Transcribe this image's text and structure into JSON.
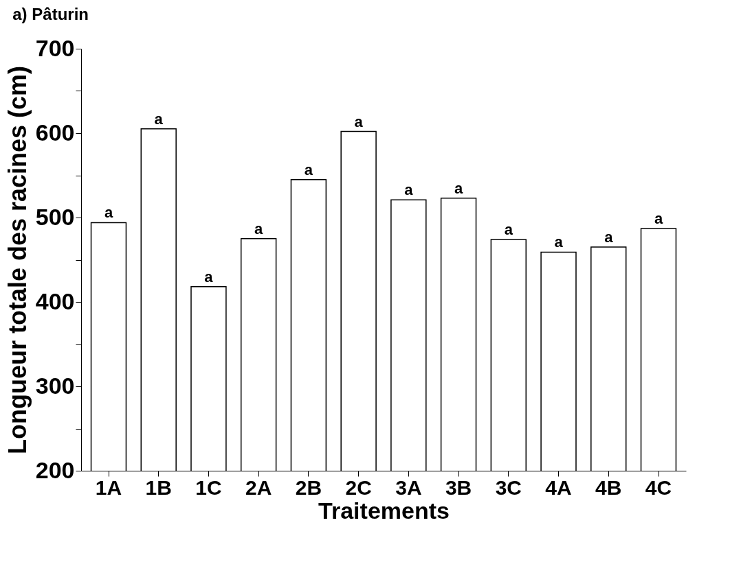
{
  "chart_data": {
    "type": "bar",
    "title": "a) Pâturin",
    "xlabel": "Traitements",
    "ylabel": "Longueur totale des racines (cm)",
    "categories": [
      "1A",
      "1B",
      "1C",
      "2A",
      "2B",
      "2C",
      "3A",
      "3B",
      "3C",
      "4A",
      "4B",
      "4C"
    ],
    "values": [
      494,
      605,
      418,
      475,
      545,
      602,
      521,
      523,
      474,
      459,
      465,
      487
    ],
    "value_labels": [
      "a",
      "a",
      "a",
      "a",
      "a",
      "a",
      "a",
      "a",
      "a",
      "a",
      "a",
      "a"
    ],
    "color": "#ffffff",
    "ylim": [
      200,
      700
    ],
    "yticks": [
      200,
      {
        "value": 250,
        "label": null
      },
      300,
      {
        "value": 350,
        "label": null
      },
      400,
      {
        "value": 450,
        "label": null
      },
      500,
      {
        "value": 550,
        "label": null
      },
      600,
      {
        "value": 650,
        "label": null
      },
      700
    ],
    "grid": false
  }
}
